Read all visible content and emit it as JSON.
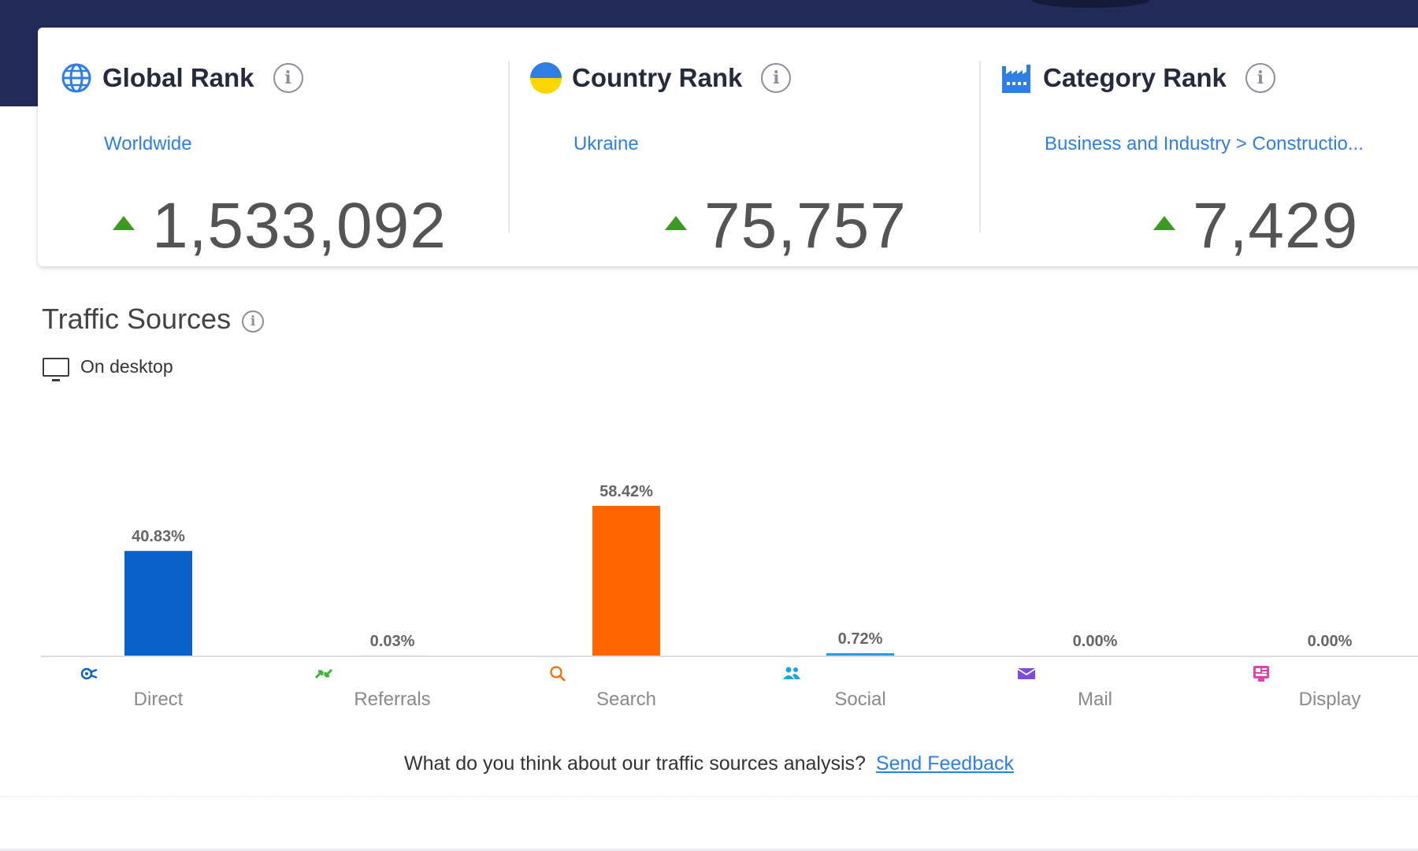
{
  "ranks": [
    {
      "title": "Global Rank",
      "subtitle": "Worldwide",
      "value": "1,533,092",
      "icon": "globe-icon"
    },
    {
      "title": "Country Rank",
      "subtitle": "Ukraine",
      "value": "75,757",
      "icon": "ukraine-flag-icon"
    },
    {
      "title": "Category Rank",
      "subtitle": "Business and Industry > Constructio...",
      "value": "7,429",
      "icon": "factory-icon"
    }
  ],
  "traffic": {
    "title": "Traffic Sources",
    "device": "On desktop",
    "feedback_text": "What do you think about our traffic sources analysis?",
    "feedback_link": "Send Feedback"
  },
  "chart_data": {
    "type": "bar",
    "categories": [
      "Direct",
      "Referrals",
      "Search",
      "Social",
      "Mail",
      "Display"
    ],
    "values": [
      40.83,
      0.03,
      58.42,
      0.72,
      0.0,
      0.0
    ],
    "labels": [
      "40.83%",
      "0.03%",
      "58.42%",
      "0.72%",
      "0.00%",
      "0.00%"
    ],
    "colors": [
      "#0a61c9",
      "#3ab53a",
      "#ff6600",
      "#1fa3e0",
      "#7a4fd6",
      "#e63fb4"
    ],
    "icons": [
      "direct-icon",
      "referrals-icon",
      "search-icon",
      "social-icon",
      "mail-icon",
      "display-icon"
    ],
    "ylim": [
      0,
      100
    ]
  },
  "colors": {
    "header": "#222a57",
    "link": "#2f7ee6",
    "up": "#3b9b1f"
  }
}
